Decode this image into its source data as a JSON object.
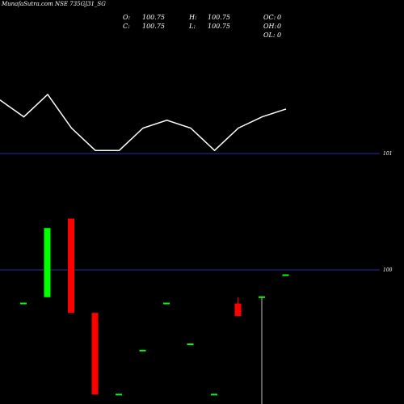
{
  "header": {
    "title": "MunafaSutra.com NSE 735GJ31_SG",
    "o_label": "O:",
    "o_value": "100.75",
    "c_label": "C:",
    "c_value": "100.75",
    "h_label": "H:",
    "h_value": "100.75",
    "l_label": "L:",
    "l_value": "100.75",
    "oc_label": "OC:",
    "oc_value": "0",
    "oh_label": "OH:",
    "oh_value": "0",
    "ol_label": "OL:",
    "ol_value": "0"
  },
  "colors": {
    "background": "#000000",
    "up": "#00ff00",
    "down": "#ff0000",
    "line": "#ffffff",
    "reference": "#3b3bd6"
  },
  "chart_data": [
    {
      "type": "line",
      "ref_label": "101",
      "values": [
        101.4,
        101.25,
        101.45,
        101.15,
        100.95,
        100.95,
        101.15,
        101.22,
        101.15,
        100.95,
        101.15,
        101.25,
        101.32
      ],
      "ylim": [
        100.85,
        101.5
      ]
    },
    {
      "type": "candlestick",
      "ref_label": "100",
      "ylim": [
        96.6,
        103.8
      ],
      "candles": [
        {
          "o": 99.8,
          "h": 99.8,
          "l": 99.8,
          "c": 99.8
        },
        {
          "o": 100.0,
          "h": 102.2,
          "l": 100.0,
          "c": 102.2
        },
        {
          "o": 102.5,
          "h": 102.5,
          "l": 99.5,
          "c": 99.5
        },
        {
          "o": 99.5,
          "h": 99.5,
          "l": 96.9,
          "c": 96.9
        },
        {
          "o": 96.9,
          "h": 96.9,
          "l": 96.9,
          "c": 96.9
        },
        {
          "o": 98.3,
          "h": 98.3,
          "l": 98.3,
          "c": 98.3
        },
        {
          "o": 99.8,
          "h": 99.8,
          "l": 99.8,
          "c": 99.8
        },
        {
          "o": 98.5,
          "h": 98.5,
          "l": 98.5,
          "c": 98.5
        },
        {
          "o": 96.9,
          "h": 96.9,
          "l": 96.9,
          "c": 96.9
        },
        {
          "o": 99.8,
          "h": 100.0,
          "l": 99.4,
          "c": 99.4
        },
        {
          "o": 100.0,
          "h": 100.0,
          "l": 96.6,
          "c": 100.0
        },
        {
          "o": 100.7,
          "h": 100.7,
          "l": 100.7,
          "c": 100.7
        }
      ]
    }
  ]
}
